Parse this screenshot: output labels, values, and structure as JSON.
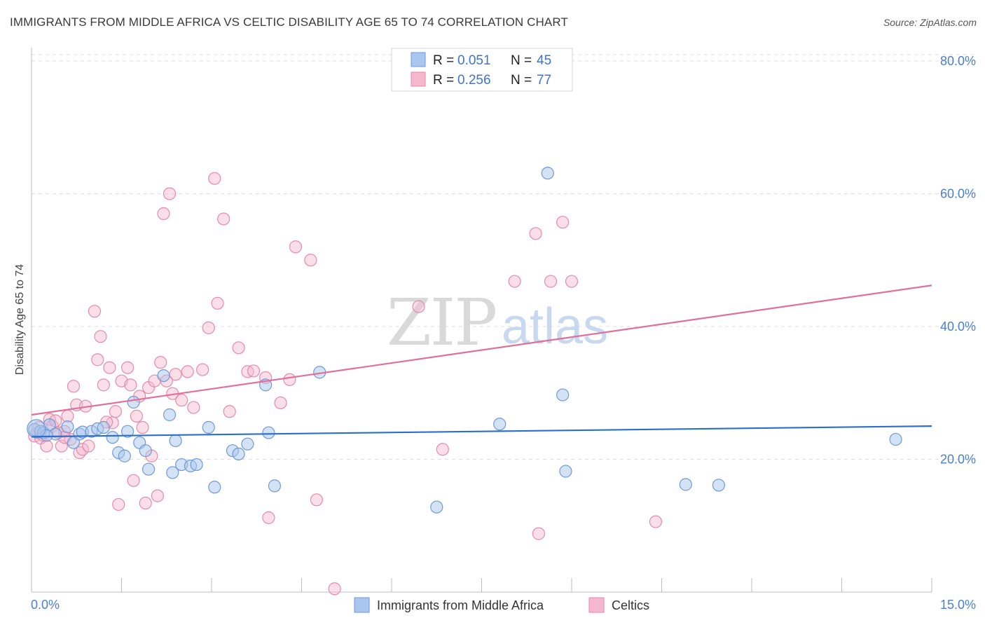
{
  "header": {
    "title": "IMMIGRANTS FROM MIDDLE AFRICA VS CELTIC DISABILITY AGE 65 TO 74 CORRELATION CHART",
    "source": "Source: ZipAtlas.com"
  },
  "watermark": {
    "zip": "ZIP",
    "atlas": "atlas"
  },
  "legend_box": {
    "series1": {
      "r_label": "R =",
      "r_value": "0.051",
      "n_label": "N =",
      "n_value": "45"
    },
    "series2": {
      "r_label": "R =",
      "r_value": "0.256",
      "n_label": "N =",
      "n_value": "77"
    }
  },
  "colors": {
    "blue_fill": "#a9c6ee",
    "blue_stroke": "#6f9ad8",
    "blue_line": "#2a6fcb",
    "pink_fill": "#f5b7cb",
    "pink_stroke": "#e88aa9",
    "pink_line": "#e0709a",
    "grid": "#dedede",
    "tick_text": "#4a7fd0"
  },
  "chart_data": {
    "type": "scatter",
    "title": "IMMIGRANTS FROM MIDDLE AFRICA VS CELTIC DISABILITY AGE 65 TO 74 CORRELATION CHART",
    "xlabel": "",
    "ylabel": "Disability Age 65 to 74",
    "xlim": [
      0,
      15
    ],
    "ylim": [
      0,
      82
    ],
    "x_ticks": [
      "0.0%",
      "15.0%"
    ],
    "y_ticks": [
      "20.0%",
      "40.0%",
      "60.0%",
      "80.0%"
    ],
    "y_tick_values": [
      20,
      40,
      60,
      80
    ],
    "grid": true,
    "legend_position": "top-center",
    "series": [
      {
        "name": "Immigrants from Middle Africa",
        "color": "#a9c6ee",
        "trend": {
          "x": [
            0,
            15
          ],
          "y": [
            23.4,
            25.0
          ]
        },
        "points": [
          [
            0.05,
            24.5
          ],
          [
            0.15,
            24.2
          ],
          [
            0.2,
            24.0
          ],
          [
            0.3,
            25.2
          ],
          [
            0.4,
            23.8
          ],
          [
            0.6,
            24.9
          ],
          [
            0.7,
            22.5
          ],
          [
            0.8,
            23.8
          ],
          [
            0.85,
            24.1
          ],
          [
            1.0,
            24.2
          ],
          [
            1.1,
            24.6
          ],
          [
            1.2,
            24.8
          ],
          [
            1.35,
            23.3
          ],
          [
            1.45,
            21.0
          ],
          [
            1.55,
            20.5
          ],
          [
            1.6,
            24.2
          ],
          [
            1.7,
            28.6
          ],
          [
            1.8,
            22.5
          ],
          [
            1.9,
            21.3
          ],
          [
            1.95,
            18.5
          ],
          [
            2.2,
            32.6
          ],
          [
            2.3,
            26.7
          ],
          [
            2.35,
            18.0
          ],
          [
            2.4,
            22.8
          ],
          [
            2.5,
            19.2
          ],
          [
            2.65,
            19.0
          ],
          [
            2.75,
            19.2
          ],
          [
            2.95,
            24.8
          ],
          [
            3.05,
            15.8
          ],
          [
            3.35,
            21.3
          ],
          [
            3.45,
            20.8
          ],
          [
            3.6,
            22.3
          ],
          [
            3.9,
            31.2
          ],
          [
            3.95,
            24.0
          ],
          [
            4.05,
            16.0
          ],
          [
            4.8,
            33.1
          ],
          [
            6.75,
            12.8
          ],
          [
            7.8,
            25.3
          ],
          [
            8.6,
            63.1
          ],
          [
            8.85,
            29.7
          ],
          [
            8.9,
            18.2
          ],
          [
            10.9,
            16.2
          ],
          [
            11.45,
            16.1
          ],
          [
            14.4,
            23.0
          ],
          [
            0.25,
            23.6
          ]
        ]
      },
      {
        "name": "Celtics",
        "color": "#f5b7cb",
        "trend": {
          "x": [
            0,
            15
          ],
          "y": [
            26.7,
            46.2
          ]
        },
        "points": [
          [
            0.05,
            23.5
          ],
          [
            0.1,
            24.0
          ],
          [
            0.15,
            23.2
          ],
          [
            0.25,
            22.0
          ],
          [
            0.3,
            26.0
          ],
          [
            0.35,
            25.0
          ],
          [
            0.45,
            24.0
          ],
          [
            0.5,
            22.0
          ],
          [
            0.55,
            24.2
          ],
          [
            0.6,
            26.5
          ],
          [
            0.65,
            23.0
          ],
          [
            0.7,
            31.0
          ],
          [
            0.75,
            28.2
          ],
          [
            0.8,
            21.0
          ],
          [
            0.85,
            21.5
          ],
          [
            0.9,
            28.0
          ],
          [
            0.95,
            22.0
          ],
          [
            1.05,
            42.3
          ],
          [
            1.1,
            35.0
          ],
          [
            1.15,
            38.5
          ],
          [
            1.2,
            31.2
          ],
          [
            1.3,
            33.8
          ],
          [
            1.35,
            25.5
          ],
          [
            1.4,
            27.2
          ],
          [
            1.45,
            13.2
          ],
          [
            1.5,
            31.8
          ],
          [
            1.6,
            33.8
          ],
          [
            1.65,
            31.2
          ],
          [
            1.7,
            16.8
          ],
          [
            1.75,
            26.5
          ],
          [
            1.8,
            29.5
          ],
          [
            1.85,
            24.8
          ],
          [
            1.9,
            13.4
          ],
          [
            1.95,
            30.8
          ],
          [
            2.0,
            20.5
          ],
          [
            2.1,
            14.5
          ],
          [
            2.15,
            34.6
          ],
          [
            2.2,
            57.0
          ],
          [
            2.25,
            31.8
          ],
          [
            2.3,
            60.0
          ],
          [
            2.35,
            29.9
          ],
          [
            2.4,
            32.8
          ],
          [
            2.5,
            28.9
          ],
          [
            2.6,
            33.2
          ],
          [
            2.7,
            27.8
          ],
          [
            2.85,
            33.5
          ],
          [
            2.95,
            39.8
          ],
          [
            3.05,
            62.3
          ],
          [
            3.1,
            43.5
          ],
          [
            3.2,
            56.2
          ],
          [
            3.3,
            27.2
          ],
          [
            3.45,
            36.8
          ],
          [
            3.6,
            33.2
          ],
          [
            3.7,
            33.3
          ],
          [
            3.9,
            32.3
          ],
          [
            3.95,
            11.2
          ],
          [
            4.15,
            28.5
          ],
          [
            4.3,
            32.0
          ],
          [
            4.4,
            52.0
          ],
          [
            4.65,
            50.0
          ],
          [
            4.75,
            13.9
          ],
          [
            5.05,
            0.5
          ],
          [
            6.45,
            43.0
          ],
          [
            6.85,
            21.5
          ],
          [
            8.05,
            46.8
          ],
          [
            8.4,
            54.0
          ],
          [
            8.45,
            8.8
          ],
          [
            8.65,
            46.8
          ],
          [
            8.85,
            55.7
          ],
          [
            9.0,
            46.8
          ],
          [
            10.4,
            10.6
          ],
          [
            0.4,
            25.8
          ],
          [
            0.55,
            23.3
          ],
          [
            1.25,
            25.6
          ],
          [
            2.05,
            31.8
          ],
          [
            0.2,
            23.6
          ],
          [
            0.12,
            24.8
          ]
        ]
      }
    ]
  }
}
